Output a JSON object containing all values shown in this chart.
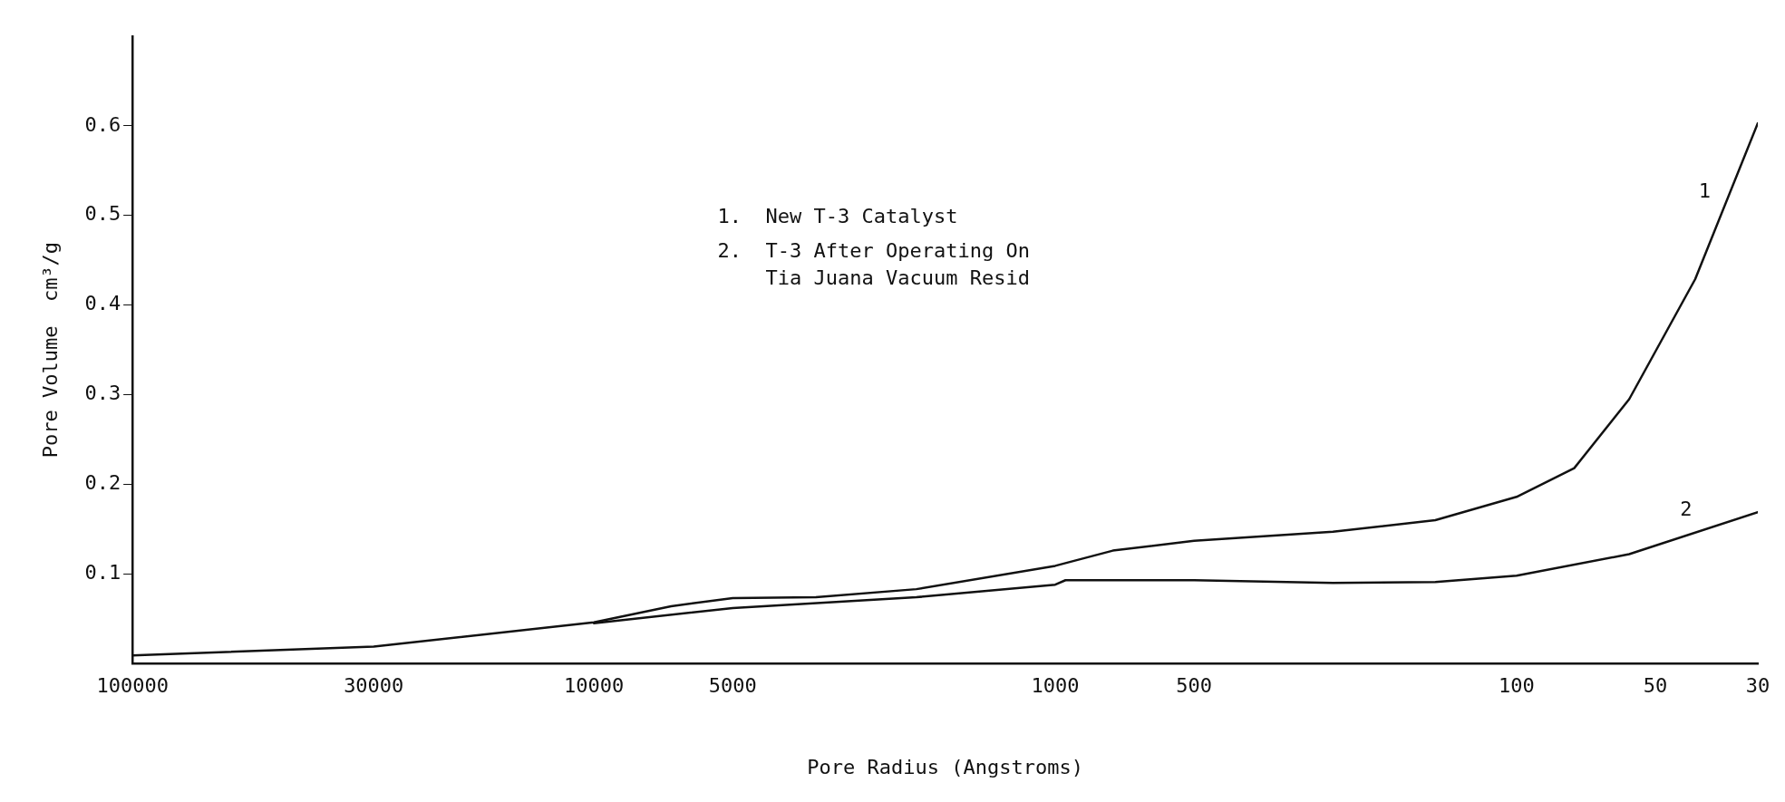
{
  "chart_data": {
    "type": "line",
    "xlabel": "Pore Radius (Angstroms)",
    "ylabel": "Pore Volume  cm³/g",
    "log": "x",
    "xlim": [
      100000,
      30
    ],
    "xticks": [
      100000,
      30000,
      10000,
      5000,
      1000,
      500,
      100,
      50,
      30
    ],
    "ylim": [
      0,
      0.7
    ],
    "yticks": [
      0.1,
      0.2,
      0.3,
      0.4,
      0.5,
      0.6
    ],
    "grid": false,
    "legend": false,
    "marker": "none",
    "line_style": "solid",
    "series": [
      {
        "name": "1",
        "color": "#111111",
        "x": [
          100000,
          30000,
          10000,
          6800,
          5000,
          3300,
          2000,
          1000,
          750,
          500,
          250,
          150,
          100,
          75,
          57,
          41,
          30
        ],
        "values": [
          0.009,
          0.019,
          0.046,
          0.064,
          0.073,
          0.074,
          0.083,
          0.109,
          0.126,
          0.137,
          0.147,
          0.16,
          0.186,
          0.218,
          0.295,
          0.429,
          0.603
        ]
      },
      {
        "name": "2",
        "color": "#111111",
        "x": [
          10000,
          5000,
          2000,
          1000,
          950,
          500,
          250,
          150,
          100,
          57,
          30
        ],
        "values": [
          0.045,
          0.062,
          0.074,
          0.088,
          0.093,
          0.093,
          0.09,
          0.091,
          0.098,
          0.122,
          0.169
        ]
      }
    ],
    "annotations": [
      "1.  New T-3 Catalyst",
      "2.  T-3 After Operating On\n    Tia Juana Vacuum Resid"
    ]
  }
}
